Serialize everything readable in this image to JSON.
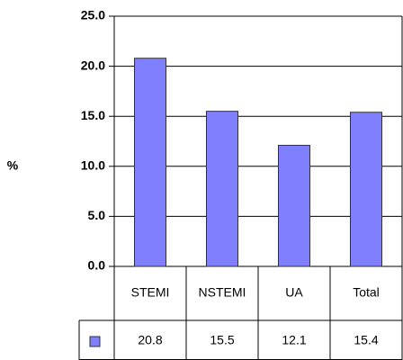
{
  "chart_data": {
    "type": "bar",
    "ylabel": "%",
    "categories": [
      "STEMI",
      "NSTEMI",
      "UA",
      "Total"
    ],
    "series": [
      {
        "color": "#8080ff",
        "values": [
          20.8,
          15.5,
          12.1,
          15.4
        ]
      }
    ],
    "ylim": [
      0,
      25
    ],
    "yticks": [
      {
        "value": 0,
        "label": "0.0"
      },
      {
        "value": 5,
        "label": "5.0"
      },
      {
        "value": 10,
        "label": "10.0"
      },
      {
        "value": 15,
        "label": "15.0"
      },
      {
        "value": 20,
        "label": "20.0"
      },
      {
        "value": 25,
        "label": "25.0"
      }
    ],
    "grid": true,
    "data_table": true
  }
}
